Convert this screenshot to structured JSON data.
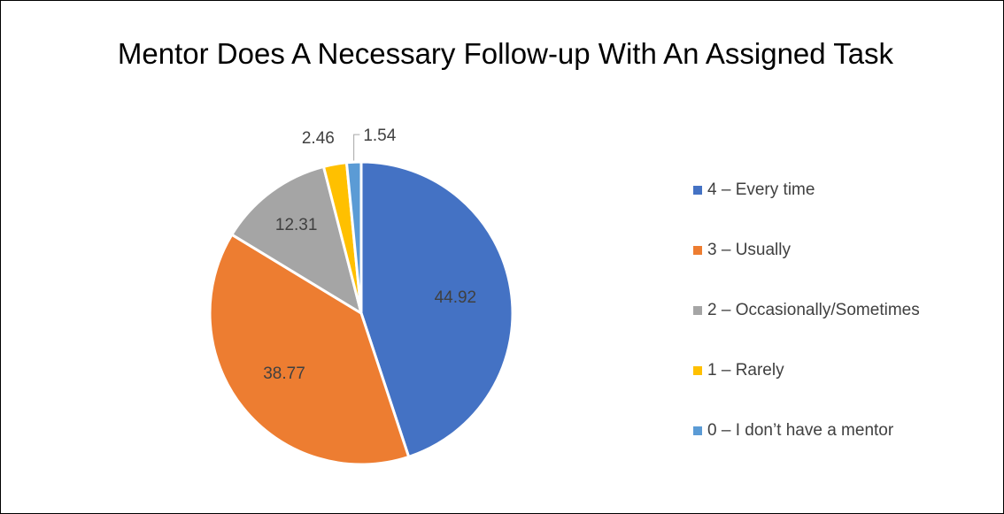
{
  "chart_data": {
    "type": "pie",
    "title": "Mentor Does A Necessary Follow-up With An Assigned Task",
    "categories": [
      "4 – Every time",
      "3 – Usually",
      "2 – Occasionally/Sometimes",
      "1 – Rarely",
      "0 – I don’t have a mentor"
    ],
    "values": [
      44.92,
      38.77,
      12.31,
      2.46,
      1.54
    ],
    "value_labels": [
      "44.92",
      "38.77",
      "12.31",
      "2.46",
      "1.54"
    ],
    "colors": [
      "#4472C4",
      "#ED7D31",
      "#A5A5A5",
      "#FFC000",
      "#5B9BD5"
    ],
    "legend_position": "right",
    "start_angle": "12 o'clock, clockwise"
  }
}
